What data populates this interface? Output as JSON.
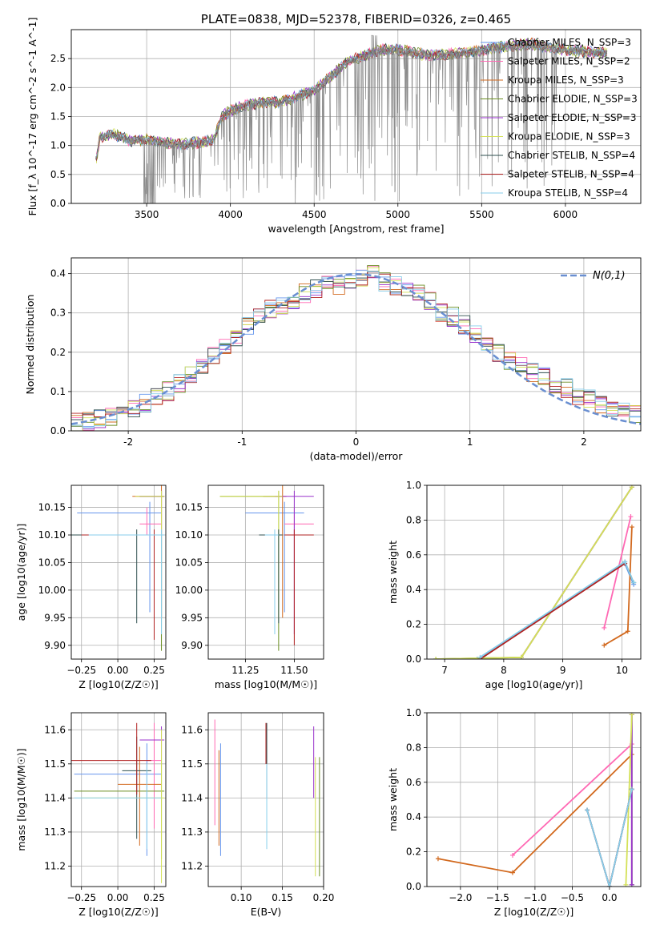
{
  "chart_data": [
    {
      "id": "spectrum",
      "type": "line",
      "title": "PLATE=0838, MJD=52378, FIBERID=0326, z=0.465",
      "xlabel": "wavelength [Angstrom, rest frame]",
      "ylabel": "Flux [f_λ 10^-17 erg cm^-2 s^-1 A^-1]",
      "xlim": [
        3050,
        6450
      ],
      "ylim": [
        0,
        3.0
      ],
      "xticks": [
        3500,
        4000,
        4500,
        5000,
        5500,
        6000
      ],
      "yticks": [
        0.0,
        0.5,
        1.0,
        1.5,
        2.0,
        2.5
      ],
      "legend_position": "right",
      "data_series": {
        "name": "data",
        "color": "#808080"
      },
      "continuum": {
        "x": [
          3200,
          3220,
          3300,
          3400,
          3500,
          3600,
          3700,
          3800,
          3900,
          3950,
          4000,
          4100,
          4200,
          4300,
          4400,
          4500,
          4600,
          4700,
          4800,
          4900,
          5000,
          5100,
          5200,
          5400,
          5600,
          5800,
          6000,
          6200
        ],
        "y": [
          0.75,
          1.15,
          1.2,
          1.08,
          1.1,
          1.05,
          1.02,
          1.05,
          1.1,
          1.5,
          1.6,
          1.7,
          1.75,
          1.75,
          1.85,
          1.95,
          2.2,
          2.45,
          2.55,
          2.65,
          2.65,
          2.6,
          2.55,
          2.6,
          2.7,
          2.75,
          2.65,
          2.6
        ]
      },
      "series": [
        {
          "name": "Chabrier MILES, N_SSP=3",
          "color": "#6495ed"
        },
        {
          "name": "Salpeter MILES, N_SSP=2",
          "color": "#ff69b4"
        },
        {
          "name": "Kroupa MILES, N_SSP=3",
          "color": "#d2691e"
        },
        {
          "name": "Chabrier ELODIE, N_SSP=3",
          "color": "#6b8e23"
        },
        {
          "name": "Salpeter ELODIE, N_SSP=3",
          "color": "#9932cc"
        },
        {
          "name": "Kroupa ELODIE, N_SSP=3",
          "color": "#d4e157"
        },
        {
          "name": "Chabrier STELIB, N_SSP=4",
          "color": "#2f4f4f"
        },
        {
          "name": "Salpeter STELIB, N_SSP=4",
          "color": "#b22222"
        },
        {
          "name": "Kroupa STELIB, N_SSP=4",
          "color": "#87ceeb"
        }
      ]
    },
    {
      "id": "residuals",
      "type": "line",
      "xlabel": "(data-model)/error",
      "ylabel": "Normed distribution",
      "xlim": [
        -2.5,
        2.5
      ],
      "ylim": [
        0,
        0.44
      ],
      "xticks": [
        -2,
        -1,
        0,
        1,
        2
      ],
      "yticks": [
        0.0,
        0.1,
        0.2,
        0.3,
        0.4
      ],
      "legend": "N(0,1)",
      "legend_position": "top-right",
      "gaussian_color": "#6a8fd1",
      "bins_x": [
        -2.5,
        -2.4,
        -2.3,
        -2.2,
        -2.1,
        -2.0,
        -1.9,
        -1.8,
        -1.7,
        -1.6,
        -1.5,
        -1.4,
        -1.3,
        -1.2,
        -1.1,
        -1.0,
        -0.9,
        -0.8,
        -0.7,
        -0.6,
        -0.5,
        -0.4,
        -0.3,
        -0.2,
        -0.1,
        0.0,
        0.1,
        0.2,
        0.3,
        0.4,
        0.5,
        0.6,
        0.7,
        0.8,
        0.9,
        1.0,
        1.1,
        1.2,
        1.3,
        1.4,
        1.5,
        1.6,
        1.7,
        1.8,
        1.9,
        2.0,
        2.1,
        2.2,
        2.3,
        2.4
      ],
      "histogram_base": [
        0.02,
        0.025,
        0.03,
        0.035,
        0.04,
        0.055,
        0.07,
        0.085,
        0.1,
        0.12,
        0.14,
        0.16,
        0.19,
        0.21,
        0.24,
        0.27,
        0.29,
        0.31,
        0.32,
        0.33,
        0.35,
        0.36,
        0.37,
        0.37,
        0.38,
        0.39,
        0.4,
        0.38,
        0.37,
        0.36,
        0.35,
        0.33,
        0.3,
        0.29,
        0.27,
        0.25,
        0.23,
        0.2,
        0.18,
        0.17,
        0.15,
        0.14,
        0.12,
        0.11,
        0.09,
        0.08,
        0.07,
        0.06,
        0.05,
        0.045
      ]
    },
    {
      "id": "age-vs-Z",
      "type": "scatter",
      "xlabel": "Z [log10(Z/Z☉)]",
      "ylabel": "age  [log10(age/yr)]",
      "xlim": [
        -0.32,
        0.33
      ],
      "ylim": [
        9.875,
        10.19
      ],
      "xticks": [
        -0.25,
        0.0,
        0.25
      ],
      "xtick_labels": [
        "−0.25",
        "0.00",
        "0.25"
      ],
      "yticks": [
        9.9,
        9.95,
        10.0,
        10.05,
        10.1,
        10.15
      ],
      "points": [
        {
          "series": "Chabrier MILES",
          "x": 0.22,
          "y": 10.14,
          "xerr": [
            0.5,
            0.08
          ],
          "yerr": [
            0.18,
            0.02
          ]
        },
        {
          "series": "Salpeter MILES",
          "x": 0.2,
          "y": 10.12,
          "xerr": [
            0.05,
            0.1
          ],
          "yerr": [
            0.02,
            0.03
          ]
        },
        {
          "series": "Kroupa MILES",
          "x": 0.3,
          "y": 10.17,
          "xerr": [
            0.2,
            0.02
          ],
          "yerr": [
            0.22,
            0.02
          ]
        },
        {
          "series": "Chabrier ELODIE",
          "x": 0.3,
          "y": 10.17,
          "xerr": [
            0.15,
            0.02
          ],
          "yerr": [
            0.28,
            0.01
          ]
        },
        {
          "series": "Salpeter ELODIE",
          "x": 0.3,
          "y": 10.17,
          "xerr": [
            0.15,
            0.02
          ],
          "yerr": [
            0.22,
            0.01
          ]
        },
        {
          "series": "Kroupa ELODIE",
          "x": 0.3,
          "y": 10.17,
          "xerr": [
            0.18,
            0.02
          ],
          "yerr": [
            0.22,
            0.01
          ]
        },
        {
          "series": "Chabrier STELIB",
          "x": 0.13,
          "y": 10.1,
          "xerr": [
            0.5,
            0.1
          ],
          "yerr": [
            0.16,
            0.01
          ]
        },
        {
          "series": "Salpeter STELIB",
          "x": 0.25,
          "y": 10.1,
          "xerr": [
            0.5,
            0.05
          ],
          "yerr": [
            0.19,
            0.01
          ]
        },
        {
          "series": "Kroupa STELIB",
          "x": 0.3,
          "y": 10.1,
          "xerr": [
            0.5,
            0.02
          ],
          "yerr": [
            0.18,
            0.01
          ]
        }
      ]
    },
    {
      "id": "age-vs-mass",
      "type": "scatter",
      "xlabel": "mass [log10(M/M☉)]",
      "ylabel": "",
      "xlim": [
        11.06,
        11.65
      ],
      "ylim": [
        9.875,
        10.19
      ],
      "xticks": [
        11.25,
        11.5
      ],
      "xtick_labels": [
        "11.25",
        "11.50"
      ],
      "yticks": [
        9.9,
        9.95,
        10.0,
        10.05,
        10.1,
        10.15
      ],
      "points": [
        {
          "series": "Chabrier MILES",
          "x": 11.45,
          "y": 10.14,
          "xerr": [
            0.2,
            0.1
          ],
          "yerr": [
            0.18,
            0.02
          ]
        },
        {
          "series": "Salpeter MILES",
          "x": 11.5,
          "y": 10.12,
          "xerr": [
            0.05,
            0.1
          ],
          "yerr": [
            0.02,
            0.03
          ]
        },
        {
          "series": "Kroupa MILES",
          "x": 11.44,
          "y": 10.17,
          "xerr": [
            0.1,
            0.02
          ],
          "yerr": [
            0.22,
            0.02
          ]
        },
        {
          "series": "Chabrier ELODIE",
          "x": 11.42,
          "y": 10.17,
          "xerr": [
            0.3,
            0.02
          ],
          "yerr": [
            0.28,
            0.01
          ]
        },
        {
          "series": "Salpeter ELODIE",
          "x": 11.5,
          "y": 10.17,
          "xerr": [
            0.1,
            0.1
          ],
          "yerr": [
            0.25,
            0.01
          ]
        },
        {
          "series": "Kroupa ELODIE",
          "x": 11.42,
          "y": 10.17,
          "xerr": [
            0.3,
            0.02
          ],
          "yerr": [
            0.22,
            0.01
          ]
        },
        {
          "series": "Chabrier STELIB",
          "x": 11.42,
          "y": 10.1,
          "xerr": [
            0.1,
            0.02
          ],
          "yerr": [
            0.16,
            0.01
          ]
        },
        {
          "series": "Salpeter STELIB",
          "x": 11.5,
          "y": 10.1,
          "xerr": [
            0.05,
            0.1
          ],
          "yerr": [
            0.2,
            0.01
          ]
        },
        {
          "series": "Kroupa STELIB",
          "x": 11.4,
          "y": 10.1,
          "xerr": [
            0.05,
            0.02
          ],
          "yerr": [
            0.18,
            0.01
          ]
        }
      ]
    },
    {
      "id": "mass-weight-vs-age",
      "type": "line",
      "xlabel": "age  [log10(age/yr)]",
      "ylabel": "mass weight",
      "xlim": [
        6.7,
        10.32
      ],
      "ylim": [
        0,
        1.0
      ],
      "xticks": [
        7,
        8,
        9,
        10
      ],
      "yticks": [
        0.0,
        0.2,
        0.4,
        0.6,
        0.8,
        1.0
      ],
      "series": [
        {
          "name": "Chabrier MILES",
          "x": [
            7.55,
            10.05,
            10.2
          ],
          "y": [
            0.0,
            0.55,
            0.43
          ]
        },
        {
          "name": "Salpeter MILES",
          "x": [
            9.7,
            10.15
          ],
          "y": [
            0.18,
            0.82
          ]
        },
        {
          "name": "Kroupa MILES",
          "x": [
            9.7,
            10.1,
            10.17
          ],
          "y": [
            0.08,
            0.16,
            0.76
          ]
        },
        {
          "name": "Chabrier ELODIE",
          "x": [
            6.85,
            8.3,
            10.17
          ],
          "y": [
            0.0,
            0.01,
            0.99
          ]
        },
        {
          "name": "Salpeter ELODIE",
          "x": [
            8.3,
            10.17
          ],
          "y": [
            0.01,
            0.99
          ]
        },
        {
          "name": "Kroupa ELODIE",
          "x": [
            6.85,
            8.3,
            10.17
          ],
          "y": [
            0.0,
            0.01,
            0.99
          ]
        },
        {
          "name": "Chabrier STELIB",
          "x": [
            7.6,
            10.05,
            10.2
          ],
          "y": [
            0.0,
            0.56,
            0.44
          ]
        },
        {
          "name": "Salpeter STELIB",
          "x": [
            7.6,
            10.05
          ],
          "y": [
            0.0,
            0.55
          ]
        },
        {
          "name": "Kroupa STELIB",
          "x": [
            7.6,
            10.05,
            10.2
          ],
          "y": [
            0.01,
            0.56,
            0.44
          ]
        }
      ]
    },
    {
      "id": "mass-vs-Z",
      "type": "scatter",
      "xlabel": "Z [log10(Z/Z☉)]",
      "ylabel": "mass [log10(M/M☉)]",
      "xlim": [
        -0.32,
        0.33
      ],
      "ylim": [
        11.14,
        11.65
      ],
      "xticks": [
        -0.25,
        0.0,
        0.25
      ],
      "xtick_labels": [
        "−0.25",
        "0.00",
        "0.25"
      ],
      "yticks": [
        11.2,
        11.3,
        11.4,
        11.5,
        11.6
      ],
      "points": [
        {
          "series": "Chabrier MILES",
          "x": 0.2,
          "y": 11.47,
          "xerr": [
            0.5,
            0.1
          ],
          "yerr": [
            0.24,
            0.09
          ]
        },
        {
          "series": "Salpeter MILES",
          "x": 0.25,
          "y": 11.51,
          "xerr": [
            0.05,
            0.05
          ],
          "yerr": [
            0.2,
            0.11
          ]
        },
        {
          "series": "Kroupa MILES",
          "x": 0.15,
          "y": 11.44,
          "xerr": [
            0.15,
            0.15
          ],
          "yerr": [
            0.18,
            0.11
          ]
        },
        {
          "series": "Chabrier ELODIE",
          "x": 0.3,
          "y": 11.42,
          "xerr": [
            0.6,
            0.02
          ],
          "yerr": [
            0.2,
            0.1
          ]
        },
        {
          "series": "Salpeter ELODIE",
          "x": 0.3,
          "y": 11.57,
          "xerr": [
            0.15,
            0.02
          ],
          "yerr": [
            0.05,
            0.04
          ]
        },
        {
          "series": "Kroupa ELODIE",
          "x": 0.3,
          "y": 11.4,
          "xerr": [
            0.55,
            0.02
          ],
          "yerr": [
            0.25,
            0.2
          ]
        },
        {
          "series": "Chabrier STELIB",
          "x": 0.13,
          "y": 11.48,
          "xerr": [
            0.1,
            0.1
          ],
          "yerr": [
            0.2,
            0.1
          ]
        },
        {
          "series": "Salpeter STELIB",
          "x": 0.13,
          "y": 11.51,
          "xerr": [
            0.5,
            0.1
          ],
          "yerr": [
            0.1,
            0.11
          ]
        },
        {
          "series": "Kroupa STELIB",
          "x": 0.2,
          "y": 11.4,
          "xerr": [
            0.5,
            0.1
          ],
          "yerr": [
            0.15,
            0.1
          ]
        }
      ]
    },
    {
      "id": "mass-vs-EBV",
      "type": "scatter",
      "xlabel": "E(B-V)",
      "ylabel": "",
      "xlim": [
        0.06,
        0.2
      ],
      "ylim": [
        11.14,
        11.65
      ],
      "xticks": [
        0.1,
        0.15,
        0.2
      ],
      "xtick_labels": [
        "0.10",
        "0.15",
        "0.20"
      ],
      "yticks": [
        11.2,
        11.3,
        11.4,
        11.5,
        11.6
      ],
      "points": [
        {
          "series": "Chabrier MILES",
          "x": 0.075,
          "y": 11.4,
          "yerr": [
            0.17,
            0.16
          ]
        },
        {
          "series": "Salpeter MILES",
          "x": 0.068,
          "y": 11.47,
          "yerr": [
            0.15,
            0.16
          ]
        },
        {
          "series": "Kroupa MILES",
          "x": 0.073,
          "y": 11.4,
          "yerr": [
            0.14,
            0.14
          ]
        },
        {
          "series": "Chabrier ELODIE",
          "x": 0.195,
          "y": 11.35,
          "yerr": [
            0.18,
            0.17
          ]
        },
        {
          "series": "Salpeter ELODIE",
          "x": 0.188,
          "y": 11.45,
          "yerr": [
            0.05,
            0.16
          ]
        },
        {
          "series": "Kroupa ELODIE",
          "x": 0.19,
          "y": 11.35,
          "yerr": [
            0.18,
            0.17
          ]
        },
        {
          "series": "Chabrier STELIB",
          "x": 0.131,
          "y": 11.5,
          "yerr": [
            0.1,
            0.12
          ]
        },
        {
          "series": "Salpeter STELIB",
          "x": 0.13,
          "y": 11.55,
          "yerr": [
            0.05,
            0.07
          ]
        },
        {
          "series": "Kroupa STELIB",
          "x": 0.131,
          "y": 11.4,
          "yerr": [
            0.15,
            0.1
          ]
        }
      ]
    },
    {
      "id": "mass-weight-vs-Z",
      "type": "line",
      "xlabel": "Z [log10(Z/Z☉)]",
      "ylabel": "mass weight",
      "xlim": [
        -2.45,
        0.42
      ],
      "ylim": [
        0,
        1.0
      ],
      "xticks": [
        -2.0,
        -1.5,
        -1.0,
        -0.5,
        0.0
      ],
      "xtick_labels": [
        "−2.0",
        "−1.5",
        "−1.0",
        "−0.5",
        "0.0"
      ],
      "yticks": [
        0.0,
        0.2,
        0.4,
        0.6,
        0.8,
        1.0
      ],
      "series": [
        {
          "name": "Chabrier MILES",
          "x": [
            -0.3,
            0.0,
            0.3
          ],
          "y": [
            0.44,
            0.0,
            0.56
          ]
        },
        {
          "name": "Salpeter MILES",
          "x": [
            -1.3,
            0.3
          ],
          "y": [
            0.18,
            0.82
          ]
        },
        {
          "name": "Kroupa MILES",
          "x": [
            -2.3,
            -1.3,
            0.3
          ],
          "y": [
            0.16,
            0.08,
            0.76
          ]
        },
        {
          "name": "Chabrier ELODIE",
          "x": [
            0.3,
            0.3
          ],
          "y": [
            0.01,
            0.99
          ]
        },
        {
          "name": "Salpeter ELODIE",
          "x": [
            0.3,
            0.3
          ],
          "y": [
            0.01,
            0.99
          ]
        },
        {
          "name": "Kroupa ELODIE",
          "x": [
            0.22,
            0.3
          ],
          "y": [
            0.01,
            0.99
          ]
        },
        {
          "name": "Chabrier STELIB",
          "x": [
            -0.3,
            0.0,
            0.3
          ],
          "y": [
            0.44,
            0.0,
            0.56
          ]
        },
        {
          "name": "Salpeter STELIB",
          "x": [
            -0.3,
            0.0,
            0.3
          ],
          "y": [
            0.44,
            0.0,
            0.56
          ]
        },
        {
          "name": "Kroupa STELIB",
          "x": [
            -0.3,
            0.0,
            0.3
          ],
          "y": [
            0.44,
            0.0,
            0.56
          ]
        }
      ]
    }
  ]
}
